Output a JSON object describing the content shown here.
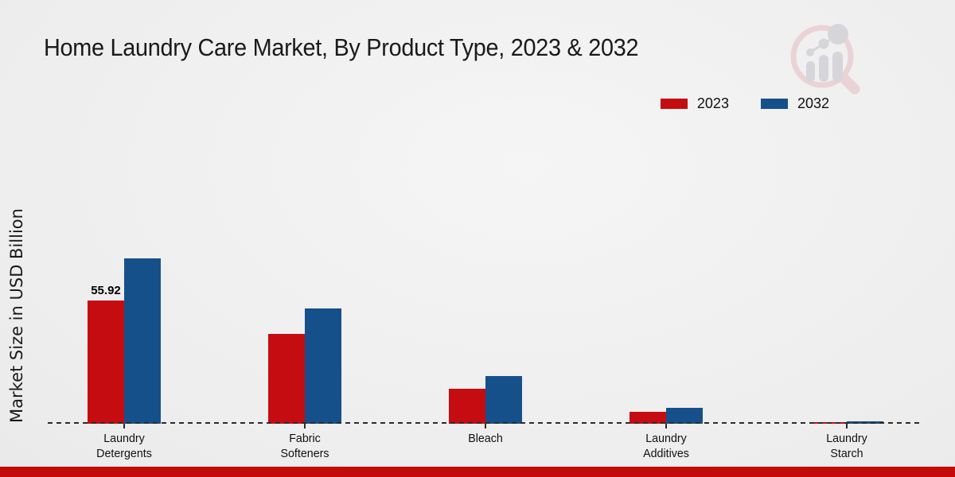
{
  "chart_data": {
    "type": "bar",
    "title": "Home Laundry Care Market, By Product Type, 2023 & 2032",
    "ylabel": "Market Size in USD Billion",
    "xlabel": "",
    "categories": [
      "Laundry Detergents",
      "Fabric Softeners",
      "Bleach",
      "Laundry Additives",
      "Laundry Starch"
    ],
    "series": [
      {
        "name": "2023",
        "color": "#c50d11",
        "values": [
          55.92,
          40.8,
          15.9,
          5.4,
          0.6
        ],
        "data_labels": [
          "55.92",
          null,
          null,
          null,
          null
        ]
      },
      {
        "name": "2032",
        "color": "#15508a",
        "values": [
          75.05,
          52.3,
          21.6,
          7.2,
          1.2
        ],
        "data_labels": [
          null,
          null,
          null,
          null,
          null
        ]
      }
    ],
    "ylim": [
      0,
      80
    ],
    "grid": false,
    "legend_position": "top-right",
    "baseline_style": "dashed"
  },
  "icons": {
    "watermark": "magnifier-growth-chart-logo"
  },
  "footer": {
    "strip_color": "#c30b0b"
  },
  "layout_colors": {
    "background": "#ececec",
    "text": "#1a1a1a",
    "axis_dash": "#2b2b2b"
  }
}
